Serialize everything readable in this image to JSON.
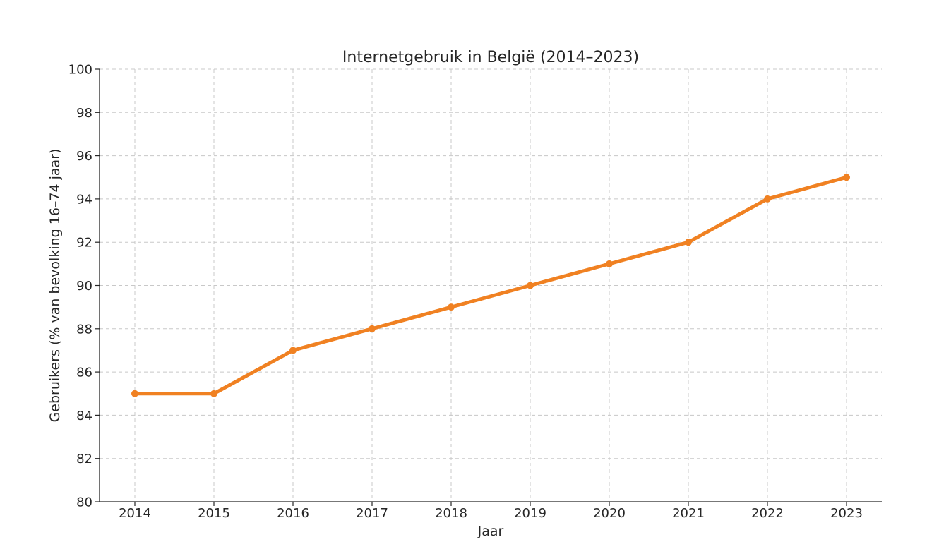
{
  "chart_data": {
    "type": "line",
    "title": "Internetgebruik in België (2014–2023)",
    "xlabel": "Jaar",
    "ylabel": "Gebruikers (% van bevolking 16–74 jaar)",
    "x": [
      "2014",
      "2015",
      "2016",
      "2017",
      "2018",
      "2019",
      "2020",
      "2021",
      "2022",
      "2023"
    ],
    "series": [
      {
        "values": [
          85,
          85,
          87,
          88,
          89,
          90,
          91,
          92,
          94,
          95
        ],
        "color": "#f08122"
      }
    ],
    "ylim": [
      80,
      100
    ],
    "yticks": [
      80,
      82,
      84,
      86,
      88,
      90,
      92,
      94,
      96,
      98,
      100
    ],
    "grid": true,
    "legend": "none",
    "markers": true
  }
}
